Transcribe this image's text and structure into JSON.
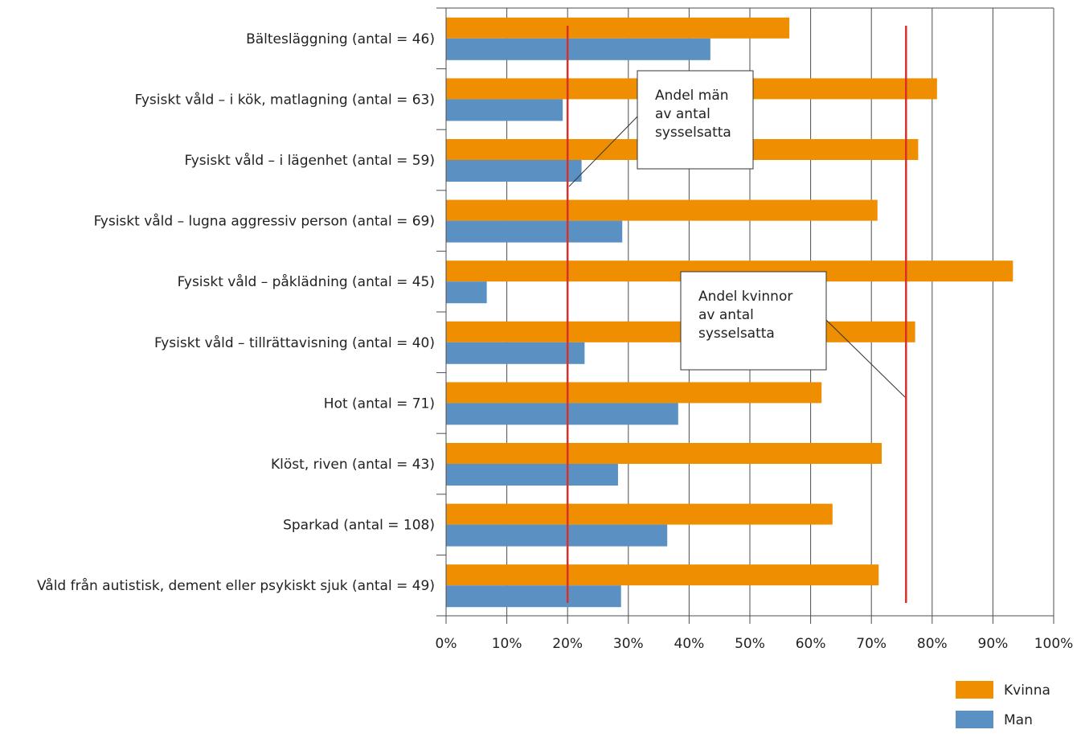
{
  "chart_data": {
    "type": "bar",
    "orientation": "horizontal",
    "categories": [
      "Bältesläggning (antal = 46)",
      "Fysiskt våld – i kök, matlagning (antal = 63)",
      "Fysiskt våld – i lägenhet (antal = 59)",
      "Fysiskt våld – lugna aggressiv person (antal = 69)",
      "Fysiskt våld – påklädning (antal = 45)",
      "Fysiskt våld – tillrättavisning (antal = 40)",
      "Hot (antal = 71)",
      "Klöst, riven (antal = 43)",
      "Sparkad (antal = 108)",
      "Våld från autistisk, dement eller psykiskt sjuk (antal = 49)"
    ],
    "series": [
      {
        "name": "Kvinna",
        "color": "#EE8E00",
        "values": [
          56.5,
          80.8,
          77.7,
          71.0,
          93.3,
          77.2,
          61.8,
          71.7,
          63.6,
          71.2
        ]
      },
      {
        "name": "Man",
        "color": "#5B90C3",
        "values": [
          43.5,
          19.2,
          22.3,
          29.0,
          6.7,
          22.8,
          38.2,
          28.3,
          36.4,
          28.8
        ]
      }
    ],
    "xlim": [
      0,
      100
    ],
    "x_ticks": [
      "0%",
      "10%",
      "20%",
      "30%",
      "40%",
      "50%",
      "60%",
      "70%",
      "80%",
      "90%",
      "100%"
    ],
    "grid": "vertical",
    "legend_position": "bottom-right",
    "reference_lines": [
      {
        "value": 20,
        "color": "#D9302C"
      },
      {
        "value": 75.7,
        "color": "#D9302C"
      }
    ],
    "annotations": [
      {
        "lines": [
          "Andel män",
          "av antal",
          "sysselsatta"
        ]
      },
      {
        "lines": [
          "Andel kvinnor",
          "av antal",
          "sysselsatta"
        ]
      }
    ]
  }
}
